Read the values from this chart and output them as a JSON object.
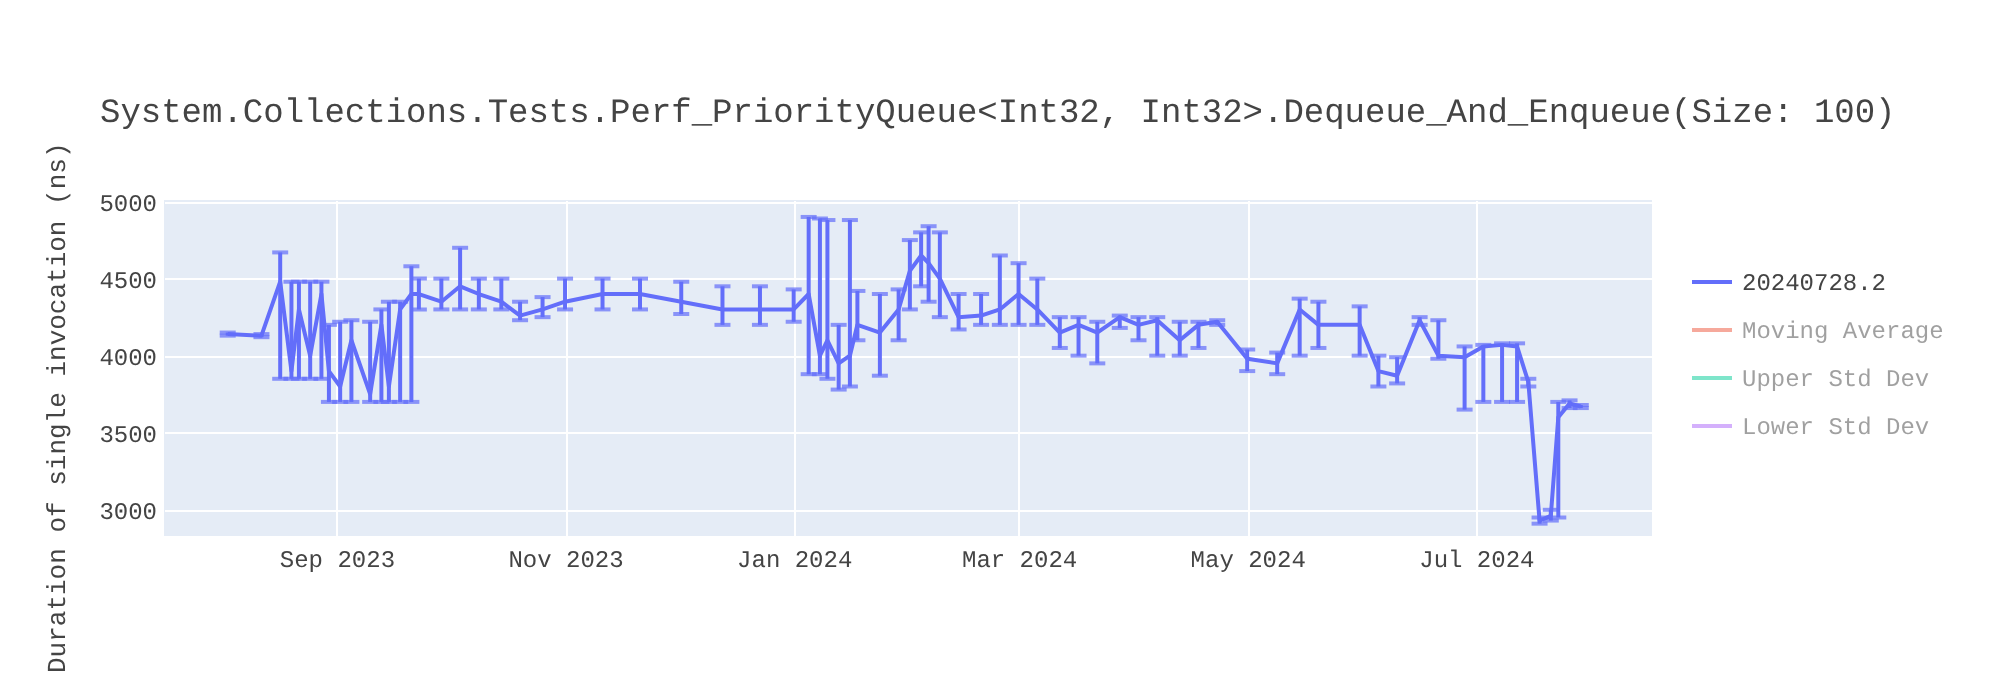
{
  "chart_data": {
    "type": "line",
    "title": "System.Collections.Tests.Perf_PriorityQueue<Int32, Int32>.Dequeue_And_Enqueue(Size: 100)",
    "ylabel": "Duration of single invocation (ns)",
    "x": [
      "2023-08-03",
      "2023-08-12",
      "2023-08-17",
      "2023-08-20",
      "2023-08-22",
      "2023-08-25",
      "2023-08-28",
      "2023-08-30",
      "2023-09-02",
      "2023-09-05",
      "2023-09-10",
      "2023-09-13",
      "2023-09-15",
      "2023-09-18",
      "2023-09-21",
      "2023-09-23",
      "2023-09-29",
      "2023-10-04",
      "2023-10-09",
      "2023-10-15",
      "2023-10-20",
      "2023-10-26",
      "2023-11-01",
      "2023-11-11",
      "2023-11-21",
      "2023-12-02",
      "2023-12-13",
      "2023-12-23",
      "2024-01-01",
      "2024-01-05",
      "2024-01-08",
      "2024-01-10",
      "2024-01-13",
      "2024-01-16",
      "2024-01-18",
      "2024-01-24",
      "2024-01-29",
      "2024-02-01",
      "2024-02-04",
      "2024-02-06",
      "2024-02-09",
      "2024-02-14",
      "2024-02-20",
      "2024-02-25",
      "2024-03-01",
      "2024-03-06",
      "2024-03-12",
      "2024-03-17",
      "2024-03-22",
      "2024-03-28",
      "2024-04-02",
      "2024-04-07",
      "2024-04-13",
      "2024-04-18",
      "2024-04-23",
      "2024-05-01",
      "2024-05-09",
      "2024-05-15",
      "2024-05-20",
      "2024-05-31",
      "2024-06-05",
      "2024-06-10",
      "2024-06-16",
      "2024-06-21",
      "2024-06-28",
      "2024-07-03",
      "2024-07-08",
      "2024-07-12",
      "2024-07-15",
      "2024-07-18",
      "2024-07-21",
      "2024-07-23",
      "2024-07-26",
      "2024-07-29"
    ],
    "series": [
      {
        "name": "20240728.2",
        "color": "#636efa",
        "values": [
          4140,
          4130,
          4480,
          3900,
          4300,
          4000,
          4400,
          3900,
          3800,
          4100,
          3750,
          4200,
          3800,
          4300,
          4400,
          4400,
          4350,
          4450,
          4400,
          4350,
          4260,
          4300,
          4350,
          4400,
          4400,
          4350,
          4300,
          4300,
          4300,
          4400,
          4000,
          4100,
          3950,
          4000,
          4200,
          4150,
          4300,
          4550,
          4650,
          4600,
          4500,
          4250,
          4260,
          4300,
          4400,
          4300,
          4150,
          4200,
          4150,
          4250,
          4200,
          4230,
          4100,
          4200,
          4220,
          3980,
          3950,
          4300,
          4200,
          4200,
          3900,
          3870,
          4230,
          4000,
          3990,
          4060,
          4070,
          4060,
          3830,
          2930,
          2960,
          3600,
          3690,
          3670
        ],
        "errors": [
          [
            4130,
            4150
          ],
          [
            4120,
            4140
          ],
          [
            3850,
            4670
          ],
          [
            3850,
            4480
          ],
          [
            3850,
            4480
          ],
          [
            3850,
            4480
          ],
          [
            3850,
            4480
          ],
          [
            3700,
            4200
          ],
          [
            3700,
            4220
          ],
          [
            3700,
            4230
          ],
          [
            3700,
            4220
          ],
          [
            3700,
            4300
          ],
          [
            3700,
            4350
          ],
          [
            3700,
            4350
          ],
          [
            3700,
            4580
          ],
          [
            4300,
            4500
          ],
          [
            4300,
            4500
          ],
          [
            4300,
            4700
          ],
          [
            4300,
            4500
          ],
          [
            4300,
            4500
          ],
          [
            4230,
            4350
          ],
          [
            4250,
            4380
          ],
          [
            4300,
            4500
          ],
          [
            4300,
            4500
          ],
          [
            4300,
            4500
          ],
          [
            4270,
            4480
          ],
          [
            4200,
            4450
          ],
          [
            4200,
            4450
          ],
          [
            4220,
            4430
          ],
          [
            3880,
            4900
          ],
          [
            3880,
            4890
          ],
          [
            3850,
            4880
          ],
          [
            3780,
            4200
          ],
          [
            3800,
            4880
          ],
          [
            4100,
            4420
          ],
          [
            3870,
            4400
          ],
          [
            4100,
            4430
          ],
          [
            4300,
            4750
          ],
          [
            4450,
            4800
          ],
          [
            4350,
            4840
          ],
          [
            4250,
            4800
          ],
          [
            4170,
            4400
          ],
          [
            4200,
            4400
          ],
          [
            4200,
            4650
          ],
          [
            4200,
            4600
          ],
          [
            4200,
            4500
          ],
          [
            4050,
            4250
          ],
          [
            4000,
            4250
          ],
          [
            3950,
            4220
          ],
          [
            4180,
            4260
          ],
          [
            4100,
            4250
          ],
          [
            4000,
            4250
          ],
          [
            4000,
            4220
          ],
          [
            4050,
            4220
          ],
          [
            4200,
            4230
          ],
          [
            3900,
            4040
          ],
          [
            3880,
            4020
          ],
          [
            4000,
            4370
          ],
          [
            4050,
            4350
          ],
          [
            4000,
            4320
          ],
          [
            3800,
            4000
          ],
          [
            3820,
            3990
          ],
          [
            4200,
            4250
          ],
          [
            3980,
            4230
          ],
          [
            3650,
            4060
          ],
          [
            3700,
            4070
          ],
          [
            3700,
            4080
          ],
          [
            3700,
            4080
          ],
          [
            3800,
            3850
          ],
          [
            2910,
            2950
          ],
          [
            2930,
            3000
          ],
          [
            2950,
            3700
          ],
          [
            3660,
            3710
          ],
          [
            3660,
            3680
          ]
        ]
      },
      {
        "name": "Moving Average",
        "color": "#ef553b",
        "values": [
          null,
          null,
          null,
          null,
          null,
          null,
          null,
          null,
          null,
          null,
          null,
          null,
          null,
          null,
          null,
          null,
          null,
          null,
          null,
          null,
          null,
          null,
          null,
          null,
          null,
          null,
          null,
          null,
          null,
          null,
          null,
          null,
          null,
          null,
          null,
          null,
          null,
          null,
          null,
          null,
          null,
          null,
          null,
          null,
          null,
          null,
          null,
          null,
          null,
          null,
          null,
          null,
          null,
          null,
          null,
          null,
          null,
          null,
          null,
          null,
          null,
          null,
          null,
          null,
          null,
          null,
          null,
          null,
          null,
          null,
          null,
          null,
          null,
          null
        ]
      },
      {
        "name": "Upper Std Dev",
        "color": "#00cc96",
        "values": [
          null,
          null,
          null,
          null,
          null,
          null,
          null,
          null,
          null,
          null,
          null,
          null,
          null,
          null,
          null,
          null,
          null,
          null,
          null,
          null,
          null,
          null,
          null,
          null,
          null,
          null,
          null,
          null,
          null,
          null,
          null,
          null,
          null,
          null,
          null,
          null,
          null,
          null,
          null,
          null,
          null,
          null,
          null,
          null,
          null,
          null,
          null,
          null,
          null,
          null,
          null,
          null,
          null,
          null,
          null,
          null,
          null,
          null,
          null,
          null,
          null,
          null,
          null,
          null,
          null,
          null,
          null,
          null,
          null,
          null,
          null,
          null,
          null,
          null
        ]
      },
      {
        "name": "Lower Std Dev",
        "color": "#ab63fa",
        "values": [
          null,
          null,
          null,
          null,
          null,
          null,
          null,
          null,
          null,
          null,
          null,
          null,
          null,
          null,
          null,
          null,
          null,
          null,
          null,
          null,
          null,
          null,
          null,
          null,
          null,
          null,
          null,
          null,
          null,
          null,
          null,
          null,
          null,
          null,
          null,
          null,
          null,
          null,
          null,
          null,
          null,
          null,
          null,
          null,
          null,
          null,
          null,
          null,
          null,
          null,
          null,
          null,
          null,
          null,
          null,
          null,
          null,
          null,
          null,
          null,
          null,
          null,
          null,
          null,
          null,
          null,
          null,
          null,
          null,
          null,
          null,
          null,
          null,
          null
        ]
      }
    ],
    "xlim": [
      "2023-07-17",
      "2024-08-17"
    ],
    "xticks": [
      {
        "value": "2023-09-01",
        "label": "Sep 2023"
      },
      {
        "value": "2023-11-01",
        "label": "Nov 2023"
      },
      {
        "value": "2024-01-01",
        "label": "Jan 2024"
      },
      {
        "value": "2024-03-01",
        "label": "Mar 2024"
      },
      {
        "value": "2024-05-01",
        "label": "May 2024"
      },
      {
        "value": "2024-07-01",
        "label": "Jul 2024"
      }
    ],
    "ylim": [
      2830,
      5010
    ],
    "yticks": [
      3000,
      3500,
      4000,
      4500,
      5000
    ],
    "grid": true,
    "legend": "top right",
    "marker": "none",
    "line_style": "solid"
  }
}
